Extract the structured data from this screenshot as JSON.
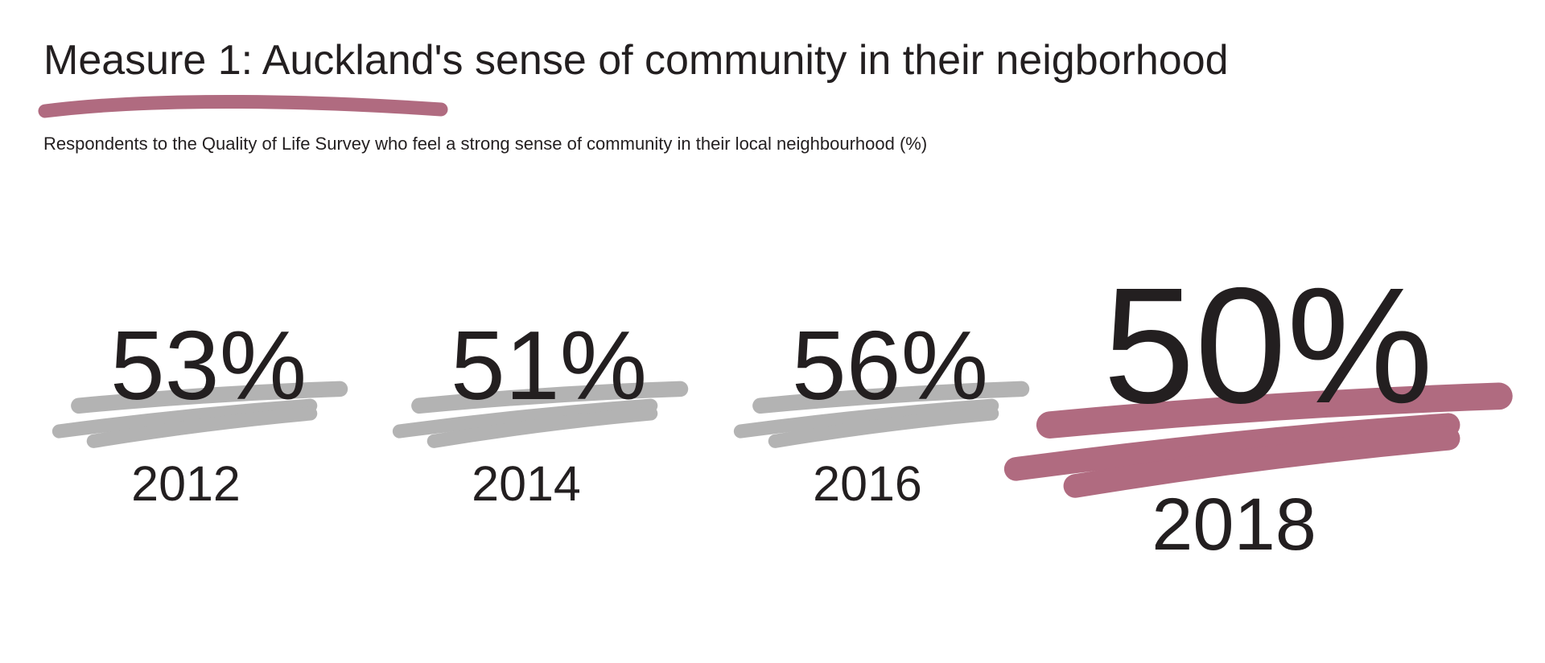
{
  "chart_data": {
    "type": "big-number",
    "title": "Measure 1: Auckland's sense of community in their neigborhood",
    "subtitle": "Respondents to the Quality of Life Survey who feel a strong sense of community in their local neighbourhood (%)",
    "categories": [
      "2012",
      "2014",
      "2016",
      "2018"
    ],
    "values": [
      53,
      51,
      56,
      50
    ],
    "value_labels": [
      "53%",
      "51%",
      "56%",
      "50%"
    ],
    "colors": [
      "#b3b3b3",
      "#b3b3b3",
      "#b3b3b3",
      "#b06b80"
    ]
  }
}
